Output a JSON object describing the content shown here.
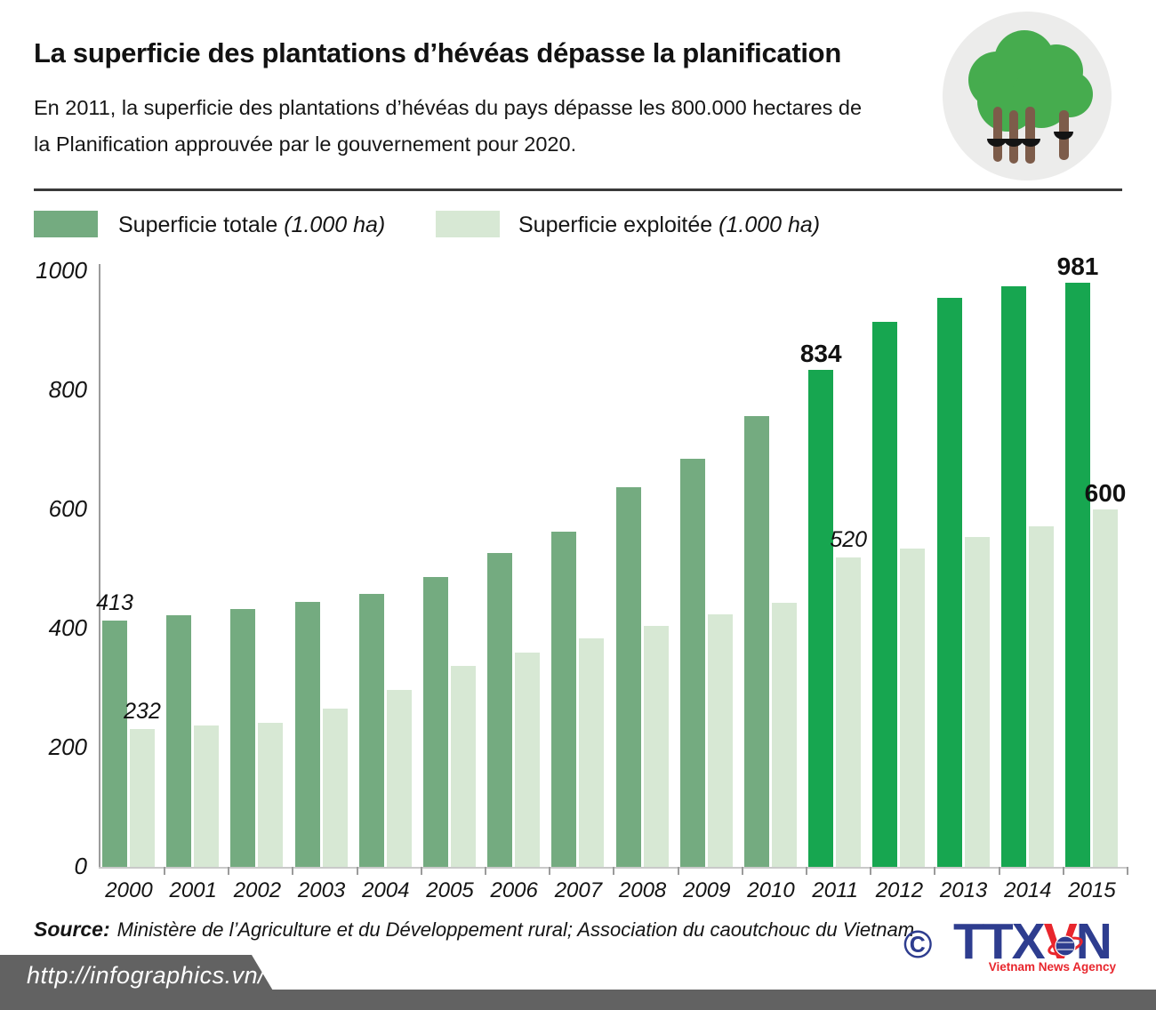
{
  "header": {
    "title": "La superficie des plantations d’hévéas dépasse la planification",
    "subtitle_line1": "En 2011, la superficie des plantations d’hévéas du pays dépasse les 800.000 hectares de",
    "subtitle_line2": "la Planification approuvée par le gouvernement pour 2020."
  },
  "icons": {
    "header_icon": "rubber-trees-icon",
    "copyright_icon": "copyright-icon",
    "globe_icon": "globe-icon"
  },
  "legend": {
    "items": [
      {
        "label": "Superficie totale",
        "unit": "(1.000 ha)",
        "color": "#74ab80"
      },
      {
        "label": "Superficie exploitée",
        "unit": "(1.000 ha)",
        "color": "#d7e8d4"
      }
    ]
  },
  "chart_data": {
    "type": "bar",
    "categories": [
      2000,
      2001,
      2002,
      2003,
      2004,
      2005,
      2006,
      2007,
      2008,
      2009,
      2010,
      2011,
      2012,
      2013,
      2014,
      2015
    ],
    "series": [
      {
        "name": "Superficie totale (1.000 ha)",
        "values": [
          413,
          422,
          433,
          445,
          458,
          487,
          527,
          562,
          638,
          685,
          757,
          834,
          915,
          955,
          975,
          981
        ]
      },
      {
        "name": "Superficie exploitée (1.000 ha)",
        "values": [
          232,
          238,
          242,
          265,
          297,
          337,
          360,
          383,
          404,
          424,
          443,
          520,
          535,
          553,
          572,
          600
        ]
      }
    ],
    "highlight_years": [
      2011,
      2012,
      2013,
      2014,
      2015
    ],
    "value_labels": [
      {
        "year": 2000,
        "series": "total",
        "text": "413",
        "weight": "italic"
      },
      {
        "year": 2000,
        "series": "exploited",
        "text": "232",
        "weight": "italic"
      },
      {
        "year": 2011,
        "series": "total",
        "text": "834",
        "weight": "bold"
      },
      {
        "year": 2011,
        "series": "exploited",
        "text": "520",
        "weight": "italic"
      },
      {
        "year": 2015,
        "series": "total",
        "text": "981",
        "weight": "bold"
      },
      {
        "year": 2015,
        "series": "exploited",
        "text": "600",
        "weight": "bold"
      }
    ],
    "yticks": [
      0,
      200,
      400,
      600,
      800,
      1000
    ],
    "ylim": [
      0,
      1000
    ],
    "grid": false,
    "legend_position": "top",
    "colors": {
      "total": "#74ab80",
      "total_highlight": "#17a650",
      "exploited": "#d7e8d4"
    }
  },
  "source": {
    "prefix": "Source:",
    "text": "Ministère de l’Agriculture et du Développement rural; Association du caoutchouc du Vietnam"
  },
  "footer": {
    "url": "http://infographics.vn/",
    "copyright_symbol": "©",
    "logo_part1": "TTX",
    "logo_part2": "V",
    "logo_part3": "N",
    "logo_tagline": "Vietnam News Agency"
  }
}
